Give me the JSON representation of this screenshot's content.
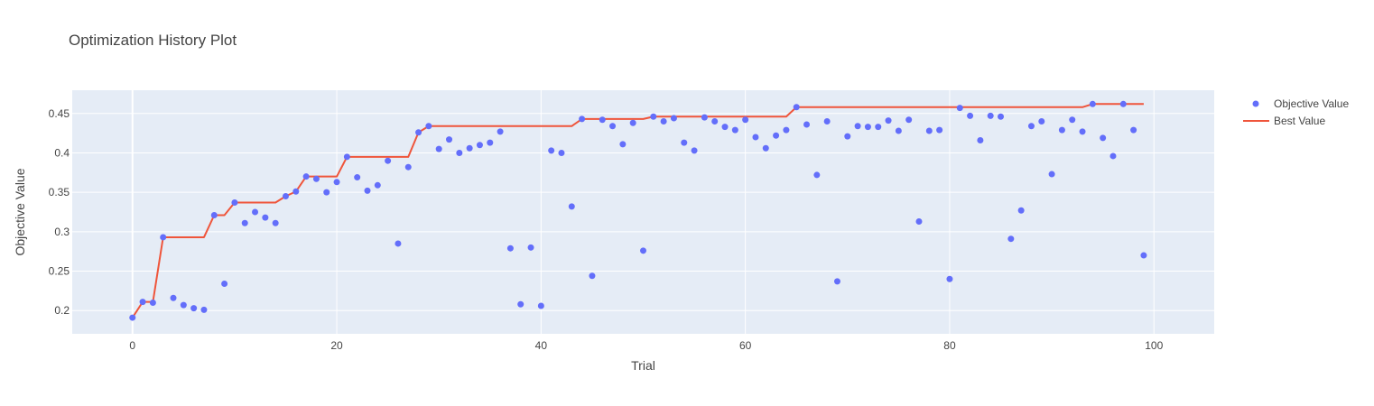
{
  "chart_data": {
    "type": "scatter",
    "title": "Optimization History Plot",
    "xlabel": "Trial",
    "ylabel": "Objective Value",
    "xlim": [
      -5.9,
      105.9
    ],
    "ylim": [
      0.1705,
      0.4795
    ],
    "x_ticks": [
      0,
      20,
      40,
      60,
      80,
      100
    ],
    "y_ticks": [
      0.2,
      0.25,
      0.3,
      0.35,
      0.4,
      0.45
    ],
    "y_tick_labels": [
      "0.2",
      "0.25",
      "0.3",
      "0.35",
      "0.4",
      "0.45"
    ],
    "grid": true,
    "legend_position": "top-right",
    "colors": {
      "plot_bg": "#e5ecf6",
      "grid": "#ffffff",
      "objective": "#636efa",
      "best": "#ef553b"
    },
    "series": [
      {
        "name": "Objective Value",
        "mode": "markers",
        "x": [
          0,
          1,
          2,
          3,
          4,
          5,
          6,
          7,
          8,
          9,
          10,
          11,
          12,
          13,
          14,
          15,
          16,
          17,
          18,
          19,
          20,
          21,
          22,
          23,
          24,
          25,
          26,
          27,
          28,
          29,
          30,
          31,
          32,
          33,
          34,
          35,
          36,
          37,
          38,
          39,
          40,
          41,
          42,
          43,
          44,
          45,
          46,
          47,
          48,
          49,
          50,
          51,
          52,
          53,
          54,
          55,
          56,
          57,
          58,
          59,
          60,
          61,
          62,
          63,
          64,
          65,
          66,
          67,
          68,
          69,
          70,
          71,
          72,
          73,
          74,
          75,
          76,
          77,
          78,
          79,
          80,
          81,
          82,
          83,
          84,
          85,
          86,
          87,
          88,
          89,
          90,
          91,
          92,
          93,
          94,
          95,
          96,
          97,
          98,
          99
        ],
        "y": [
          0.191,
          0.211,
          0.21,
          0.293,
          0.216,
          0.207,
          0.203,
          0.201,
          0.321,
          0.234,
          0.337,
          0.311,
          0.325,
          0.318,
          0.311,
          0.345,
          0.351,
          0.37,
          0.367,
          0.35,
          0.363,
          0.395,
          0.369,
          0.352,
          0.359,
          0.39,
          0.285,
          0.382,
          0.426,
          0.434,
          0.405,
          0.417,
          0.4,
          0.406,
          0.41,
          0.413,
          0.427,
          0.279,
          0.208,
          0.28,
          0.206,
          0.403,
          0.4,
          0.332,
          0.443,
          0.244,
          0.442,
          0.434,
          0.411,
          0.438,
          0.276,
          0.446,
          0.44,
          0.444,
          0.413,
          0.403,
          0.445,
          0.44,
          0.433,
          0.429,
          0.442,
          0.42,
          0.406,
          0.422,
          0.429,
          0.458,
          0.436,
          0.372,
          0.44,
          0.237,
          0.421,
          0.434,
          0.433,
          0.433,
          0.441,
          0.428,
          0.442,
          0.313,
          0.428,
          0.429,
          0.24,
          0.457,
          0.447,
          0.416,
          0.447,
          0.446,
          0.291,
          0.327,
          0.434,
          0.44,
          0.373,
          0.429,
          0.442,
          0.427,
          0.462,
          0.419,
          0.396,
          0.462,
          0.429,
          0.27
        ]
      },
      {
        "name": "Best Value",
        "mode": "lines",
        "x": [
          0,
          1,
          2,
          3,
          4,
          5,
          6,
          7,
          8,
          9,
          10,
          11,
          12,
          13,
          14,
          15,
          16,
          17,
          18,
          19,
          20,
          21,
          22,
          23,
          24,
          25,
          26,
          27,
          28,
          29,
          30,
          31,
          32,
          33,
          34,
          35,
          36,
          37,
          38,
          39,
          40,
          41,
          42,
          43,
          44,
          45,
          46,
          47,
          48,
          49,
          50,
          51,
          52,
          53,
          54,
          55,
          56,
          57,
          58,
          59,
          60,
          61,
          62,
          63,
          64,
          65,
          66,
          67,
          68,
          69,
          70,
          71,
          72,
          73,
          74,
          75,
          76,
          77,
          78,
          79,
          80,
          81,
          82,
          83,
          84,
          85,
          86,
          87,
          88,
          89,
          90,
          91,
          92,
          93,
          94,
          95,
          96,
          97,
          98,
          99
        ],
        "y": [
          0.191,
          0.211,
          0.211,
          0.293,
          0.293,
          0.293,
          0.293,
          0.293,
          0.321,
          0.321,
          0.337,
          0.337,
          0.337,
          0.337,
          0.337,
          0.345,
          0.351,
          0.37,
          0.37,
          0.37,
          0.37,
          0.395,
          0.395,
          0.395,
          0.395,
          0.395,
          0.395,
          0.395,
          0.426,
          0.434,
          0.434,
          0.434,
          0.434,
          0.434,
          0.434,
          0.434,
          0.434,
          0.434,
          0.434,
          0.434,
          0.434,
          0.434,
          0.434,
          0.434,
          0.443,
          0.443,
          0.443,
          0.443,
          0.443,
          0.443,
          0.443,
          0.446,
          0.446,
          0.446,
          0.446,
          0.446,
          0.446,
          0.446,
          0.446,
          0.446,
          0.446,
          0.446,
          0.446,
          0.446,
          0.446,
          0.458,
          0.458,
          0.458,
          0.458,
          0.458,
          0.458,
          0.458,
          0.458,
          0.458,
          0.458,
          0.458,
          0.458,
          0.458,
          0.458,
          0.458,
          0.458,
          0.458,
          0.458,
          0.458,
          0.458,
          0.458,
          0.458,
          0.458,
          0.458,
          0.458,
          0.458,
          0.458,
          0.458,
          0.458,
          0.462,
          0.462,
          0.462,
          0.462,
          0.462,
          0.462
        ]
      }
    ]
  }
}
